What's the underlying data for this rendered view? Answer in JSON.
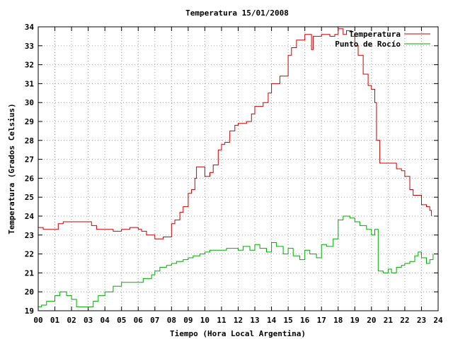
{
  "chart_data": {
    "type": "line",
    "title": "Temperatura 15/01/2008",
    "xlabel": "Tiempo (Hora Local Argentina)",
    "ylabel": "Temperatura (Grados Celsius)",
    "xlim": [
      0,
      24
    ],
    "ylim": [
      19,
      34
    ],
    "x_ticks": [
      "00",
      "01",
      "02",
      "03",
      "04",
      "05",
      "06",
      "07",
      "08",
      "09",
      "10",
      "11",
      "12",
      "13",
      "14",
      "15",
      "16",
      "17",
      "18",
      "19",
      "20",
      "21",
      "22",
      "23",
      "24"
    ],
    "y_ticks": [
      19,
      20,
      21,
      22,
      23,
      24,
      25,
      26,
      27,
      28,
      29,
      30,
      31,
      32,
      33,
      34
    ],
    "grid": true,
    "legend_position": "top-right",
    "series": [
      {
        "name": "Temperatura",
        "color": "#cc0000",
        "x": [
          0.0,
          0.3,
          1.2,
          1.5,
          2.0,
          2.5,
          3.0,
          3.2,
          3.5,
          4.0,
          4.5,
          4.8,
          5.0,
          5.5,
          6.0,
          6.2,
          6.5,
          7.0,
          7.2,
          7.5,
          8.0,
          8.2,
          8.5,
          8.7,
          9.0,
          9.2,
          9.4,
          9.5,
          10.0,
          10.3,
          10.5,
          10.8,
          11.0,
          11.2,
          11.5,
          11.8,
          12.0,
          12.5,
          12.8,
          13.0,
          13.5,
          13.8,
          14.0,
          14.5,
          15.0,
          15.2,
          15.5,
          16.0,
          16.2,
          16.4,
          16.5,
          17.0,
          17.5,
          17.8,
          18.0,
          18.3,
          18.5,
          18.8,
          19.0,
          19.2,
          19.5,
          19.8,
          20.0,
          20.2,
          20.3,
          20.5,
          21.0,
          21.5,
          21.8,
          22.0,
          22.3,
          22.5,
          23.0,
          23.3,
          23.5,
          23.6
        ],
        "values": [
          23.4,
          23.3,
          23.6,
          23.7,
          23.7,
          23.7,
          23.7,
          23.5,
          23.3,
          23.3,
          23.2,
          23.2,
          23.3,
          23.4,
          23.3,
          23.2,
          23.0,
          22.8,
          22.8,
          22.9,
          23.6,
          23.8,
          24.2,
          24.5,
          25.2,
          25.4,
          26.0,
          26.6,
          26.1,
          26.3,
          26.7,
          27.5,
          27.8,
          27.9,
          28.5,
          28.8,
          28.9,
          29.0,
          29.4,
          29.8,
          30.0,
          30.5,
          31.0,
          31.4,
          32.5,
          32.9,
          33.3,
          33.6,
          33.6,
          32.8,
          33.5,
          33.6,
          33.5,
          33.6,
          33.9,
          33.6,
          33.8,
          33.5,
          33.0,
          32.5,
          31.5,
          30.9,
          30.7,
          30.0,
          28.0,
          26.8,
          26.8,
          26.5,
          26.4,
          26.1,
          25.4,
          25.1,
          24.6,
          24.5,
          24.3,
          24.0
        ]
      },
      {
        "name": "Punto de Rocío",
        "color": "#00aa00",
        "x": [
          0.0,
          0.2,
          0.5,
          1.0,
          1.3,
          1.7,
          2.0,
          2.3,
          2.7,
          3.0,
          3.3,
          3.6,
          4.0,
          4.5,
          5.0,
          5.5,
          6.0,
          6.3,
          6.8,
          7.0,
          7.3,
          7.7,
          8.0,
          8.3,
          8.7,
          9.0,
          9.3,
          9.7,
          10.0,
          10.3,
          10.7,
          11.0,
          11.3,
          11.7,
          12.0,
          12.3,
          12.7,
          13.0,
          13.3,
          13.7,
          14.0,
          14.3,
          14.7,
          15.0,
          15.3,
          15.7,
          16.0,
          16.3,
          16.7,
          17.0,
          17.3,
          17.7,
          18.0,
          18.3,
          18.7,
          19.0,
          19.3,
          19.7,
          20.0,
          20.2,
          20.4,
          20.7,
          21.0,
          21.2,
          21.5,
          21.8,
          22.0,
          22.3,
          22.6,
          22.8,
          23.0,
          23.3,
          23.5,
          23.7
        ],
        "values": [
          19.2,
          19.3,
          19.5,
          19.8,
          20.0,
          19.8,
          19.6,
          19.2,
          19.2,
          19.2,
          19.5,
          19.8,
          20.0,
          20.3,
          20.5,
          20.5,
          20.5,
          20.7,
          20.9,
          21.1,
          21.3,
          21.4,
          21.5,
          21.6,
          21.7,
          21.8,
          21.9,
          22.0,
          22.1,
          22.2,
          22.2,
          22.2,
          22.3,
          22.3,
          22.2,
          22.4,
          22.2,
          22.5,
          22.3,
          22.1,
          22.6,
          22.4,
          22.0,
          22.3,
          21.9,
          21.7,
          22.2,
          22.0,
          21.8,
          22.5,
          22.4,
          22.8,
          23.8,
          24.0,
          23.9,
          23.7,
          23.5,
          23.3,
          23.0,
          23.3,
          21.1,
          21.0,
          21.2,
          21.0,
          21.3,
          21.4,
          21.5,
          21.6,
          21.9,
          22.1,
          21.8,
          21.5,
          21.7,
          22.0
        ]
      }
    ]
  }
}
